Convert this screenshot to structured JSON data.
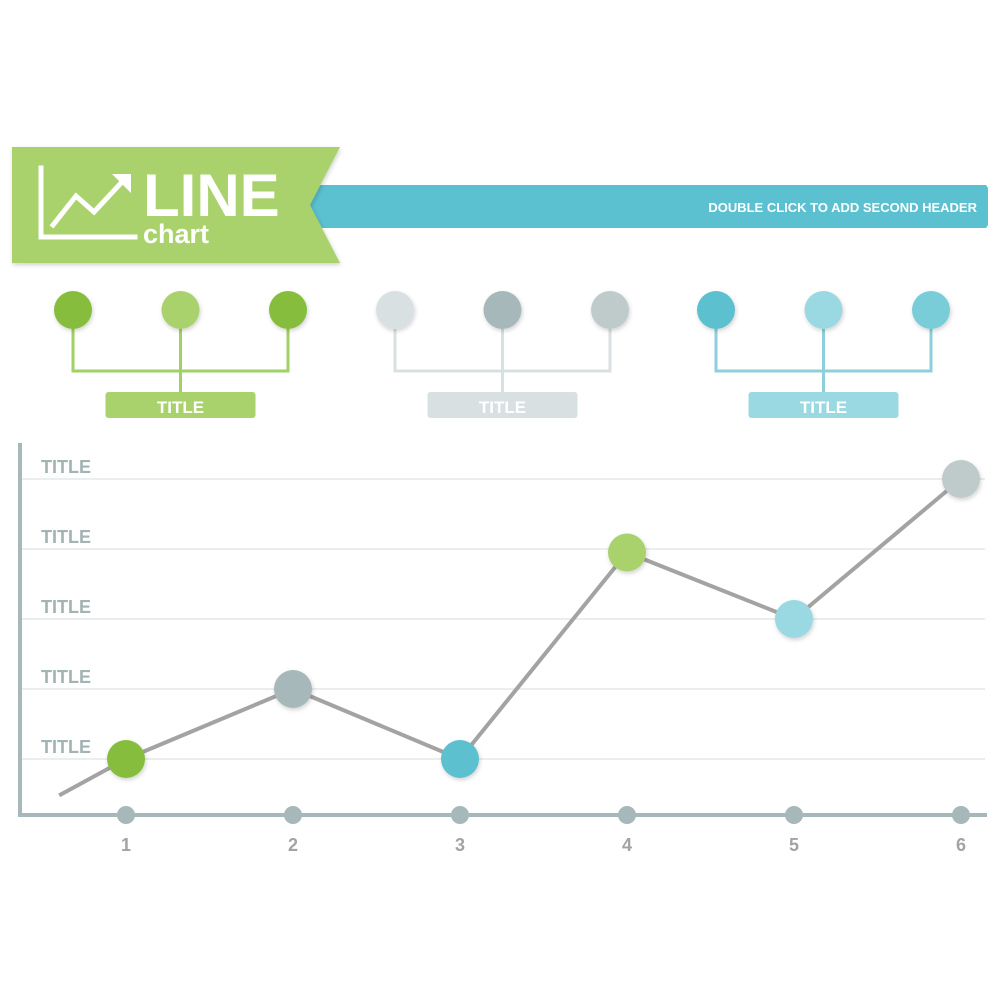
{
  "header": {
    "main_word": "LINE",
    "sub_word": "chart",
    "second_header": "DOUBLE CLICK TO ADD SECOND HEADER",
    "icon": "trend-up-icon"
  },
  "legend_groups": [
    {
      "title": "TITLE",
      "dot_colors": [
        "#86bd3d",
        "#a9d26d",
        "#86bd3d"
      ],
      "line_color": "#9fd164",
      "title_bg": "#a9d26d"
    },
    {
      "title": "TITLE",
      "dot_colors": [
        "#d9e0e1",
        "#a6b8b9",
        "#bfcbcb"
      ],
      "line_color": "#d9e0e1",
      "title_bg": "#d9e0e1"
    },
    {
      "title": "TITLE",
      "dot_colors": [
        "#5bc0cf",
        "#9ad8e2",
        "#79cdd9"
      ],
      "line_color": "#8fcfdb",
      "title_bg": "#9ad8e2"
    }
  ],
  "chart_data": {
    "type": "line",
    "x": [
      1,
      2,
      3,
      4,
      5,
      6
    ],
    "y_tick_labels": [
      "TITLE",
      "TITLE",
      "TITLE",
      "TITLE",
      "TITLE"
    ],
    "y_ticks": [
      1,
      2,
      3,
      4,
      5
    ],
    "ylim": [
      0.2,
      5.5
    ],
    "xlim": [
      0.36,
      6.2
    ],
    "line_start": {
      "x": 0.6,
      "y": 0.48
    },
    "series": [
      {
        "values": [
          1.0,
          2.0,
          1.0,
          3.95,
          3.0,
          5.0
        ]
      }
    ],
    "point_colors": [
      "#86bd3d",
      "#a6b8b9",
      "#5bc0cf",
      "#a9d26d",
      "#9ad8e2",
      "#bfcbcb"
    ],
    "grid": true,
    "line_color": "#a3a3a3",
    "axis_color": "#a6b8b9"
  },
  "colors": {
    "green_banner": "#a9d26d",
    "teal_banner": "#5bc0cf",
    "label_gray": "#a3b3b3"
  }
}
